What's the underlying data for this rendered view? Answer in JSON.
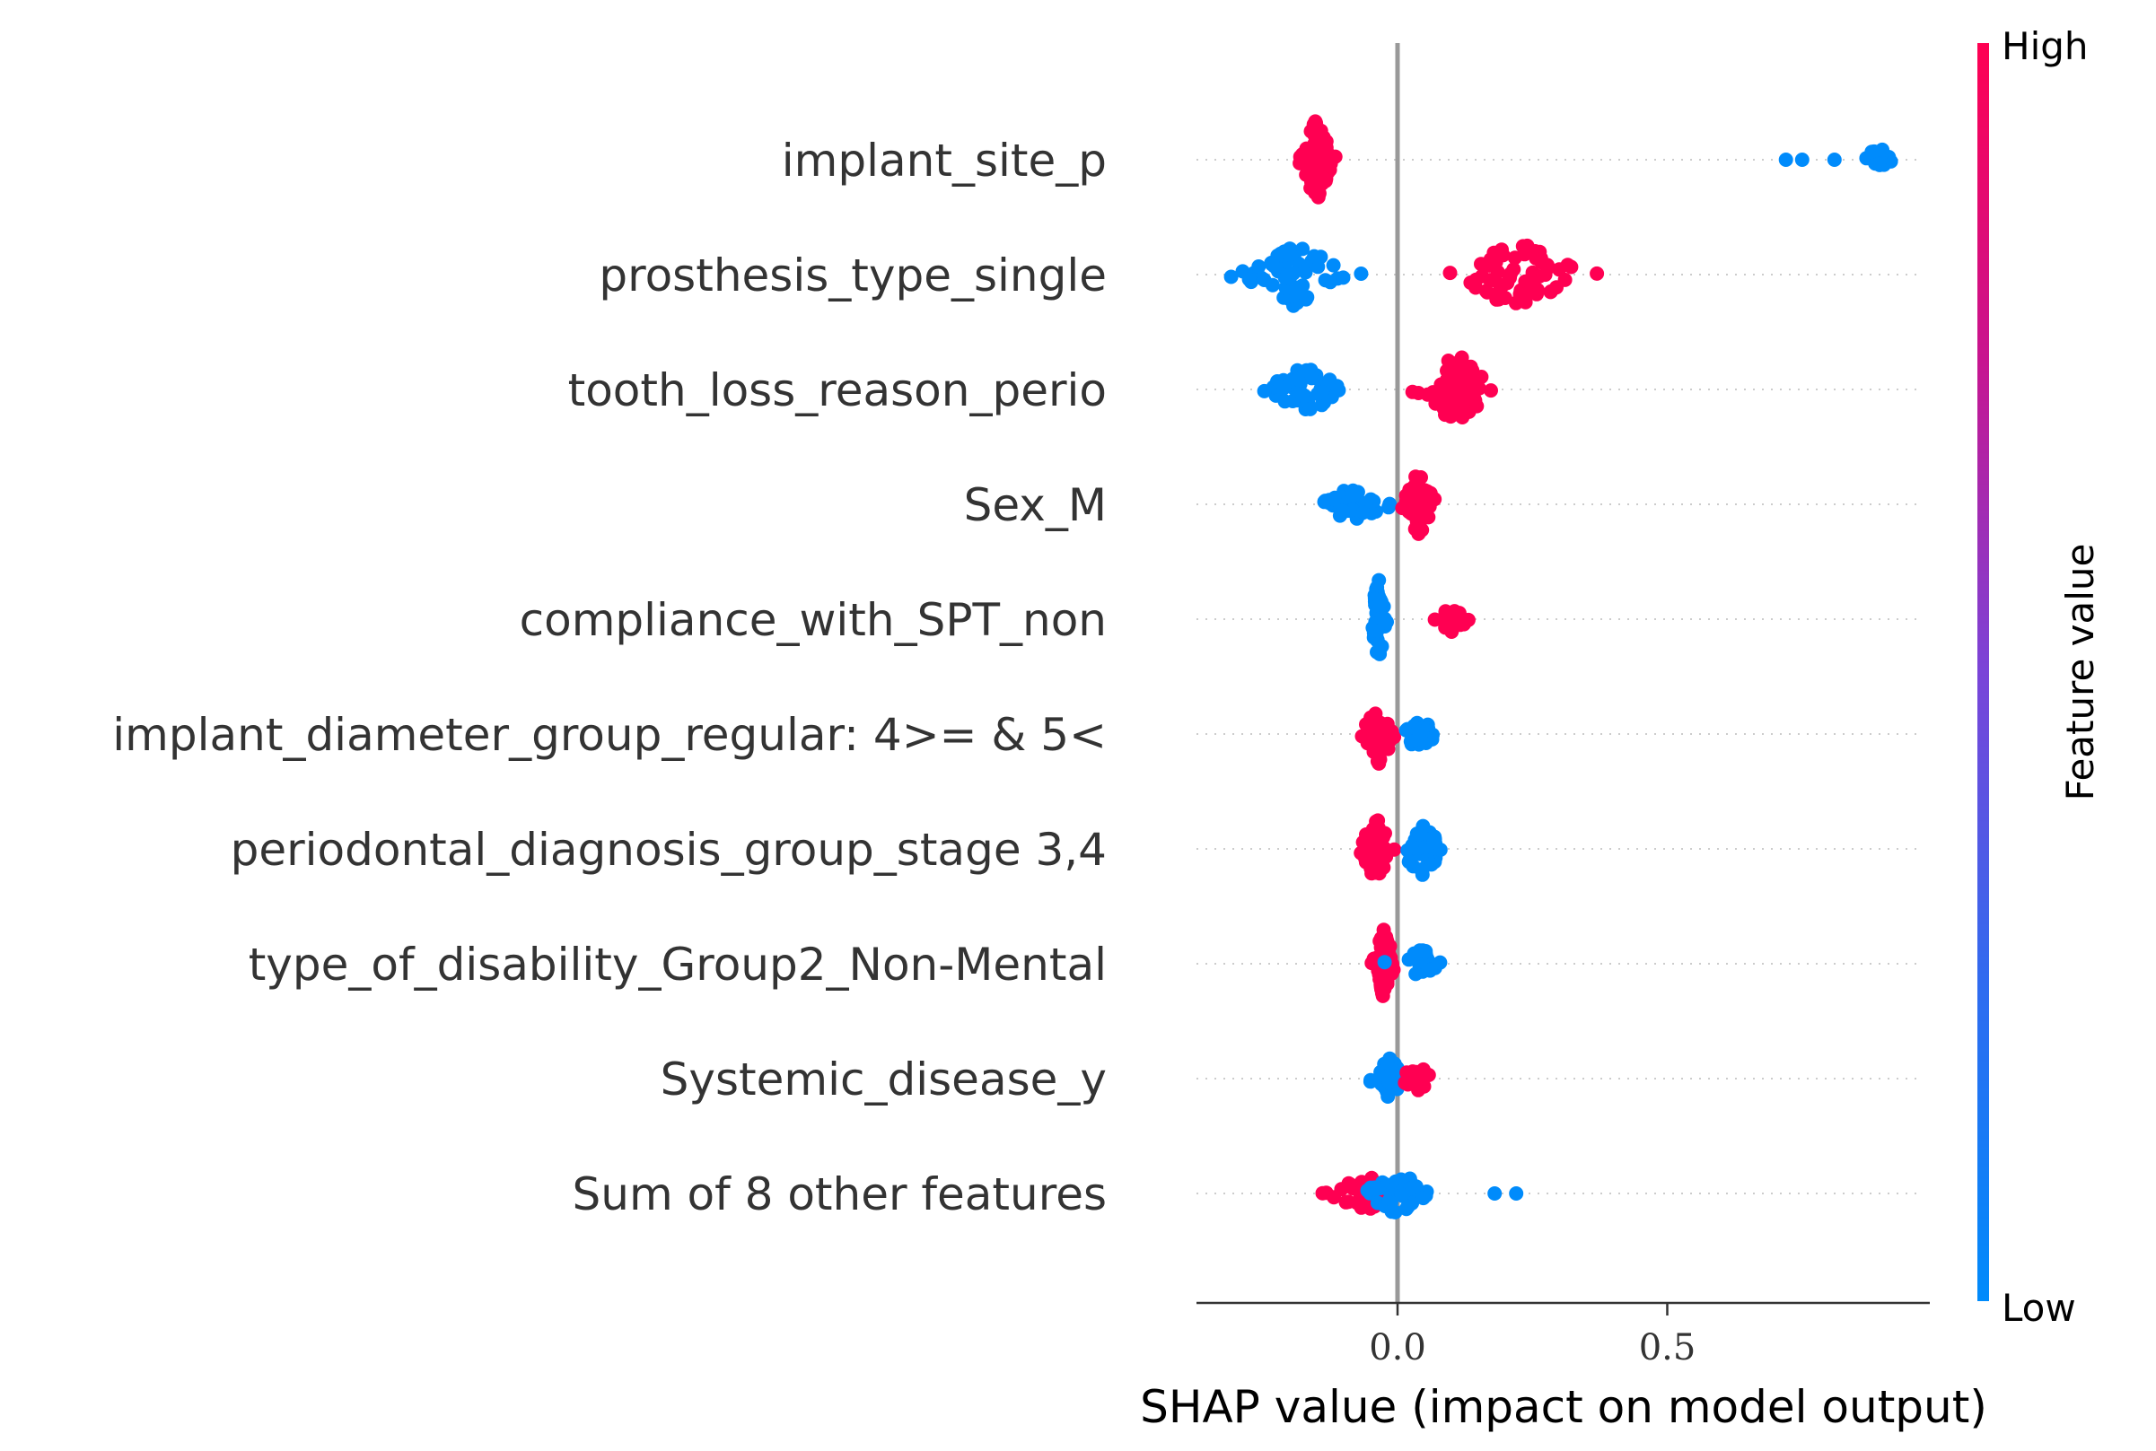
{
  "chart_data": {
    "type": "scatter",
    "subtype": "shap-beeswarm",
    "xlabel": "SHAP value (impact on model output)",
    "x_ticks": [
      0.0,
      0.5
    ],
    "x_tick_labels": [
      "0.0",
      "0.5"
    ],
    "xlim": [
      -0.37,
      0.98
    ],
    "grid": false,
    "colors": {
      "low": "#008bfb",
      "high": "#ff0052",
      "zero_line": "#999999",
      "row_guide": "#cccccc"
    },
    "colorbar": {
      "label": "Feature value",
      "high_label": "High",
      "low_label": "Low"
    },
    "features": [
      {
        "name": "implant_site_p",
        "groups": [
          {
            "value": "high",
            "center": -0.15,
            "spread": 0.03,
            "count": 90,
            "height": 1.0
          },
          {
            "value": "low",
            "center": 0.89,
            "spread": 0.03,
            "count": 16,
            "height": 0.35
          },
          {
            "value": "low",
            "points": [
              0.72,
              0.75,
              0.81
            ]
          }
        ]
      },
      {
        "name": "prosthesis_type_single",
        "groups": [
          {
            "value": "low",
            "center": -0.19,
            "spread": 0.1,
            "count": 60,
            "height": 0.75
          },
          {
            "value": "high",
            "center": 0.22,
            "spread": 0.12,
            "count": 70,
            "height": 0.8
          }
        ]
      },
      {
        "name": "tooth_loss_reason_perio",
        "groups": [
          {
            "value": "low",
            "center": -0.17,
            "spread": 0.07,
            "count": 45,
            "height": 0.6
          },
          {
            "value": "high",
            "center": 0.11,
            "spread": 0.07,
            "count": 60,
            "height": 0.85
          }
        ]
      },
      {
        "name": "Sex_M",
        "groups": [
          {
            "value": "low",
            "center": -0.08,
            "spread": 0.08,
            "count": 40,
            "height": 0.4
          },
          {
            "value": "high",
            "center": 0.04,
            "spread": 0.03,
            "count": 50,
            "height": 0.8
          }
        ]
      },
      {
        "name": "compliance_with_SPT_non",
        "groups": [
          {
            "value": "low",
            "center": -0.035,
            "spread": 0.015,
            "count": 50,
            "height": 1.0
          },
          {
            "value": "high",
            "center": 0.1,
            "spread": 0.04,
            "count": 25,
            "height": 0.3
          }
        ]
      },
      {
        "name": "implant_diameter_group_regular: 4>= & 5<",
        "groups": [
          {
            "value": "high",
            "center": -0.035,
            "spread": 0.03,
            "count": 45,
            "height": 0.75
          },
          {
            "value": "low",
            "center": 0.04,
            "spread": 0.03,
            "count": 30,
            "height": 0.45
          }
        ]
      },
      {
        "name": "periodontal_diagnosis_group_stage 3,4",
        "groups": [
          {
            "value": "high",
            "center": -0.04,
            "spread": 0.03,
            "count": 45,
            "height": 0.75
          },
          {
            "value": "low",
            "center": 0.045,
            "spread": 0.04,
            "count": 40,
            "height": 0.65
          }
        ]
      },
      {
        "name": "type_of_disability_Group2_Non-Mental",
        "groups": [
          {
            "value": "high",
            "center": -0.025,
            "spread": 0.02,
            "count": 60,
            "height": 0.85
          },
          {
            "value": "low",
            "center": 0.045,
            "spread": 0.05,
            "count": 25,
            "height": 0.35
          }
        ]
      },
      {
        "name": "Systemic_disease_y",
        "groups": [
          {
            "value": "low",
            "center": -0.015,
            "spread": 0.03,
            "count": 35,
            "height": 0.5
          },
          {
            "value": "high",
            "center": 0.035,
            "spread": 0.03,
            "count": 18,
            "height": 0.35
          }
        ]
      },
      {
        "name": "Sum of 8 other features",
        "groups": [
          {
            "value": "high",
            "center": -0.06,
            "spread": 0.07,
            "count": 40,
            "height": 0.45
          },
          {
            "value": "low",
            "center": 0.0,
            "spread": 0.06,
            "count": 40,
            "height": 0.55
          },
          {
            "value": "low",
            "points": [
              0.18,
              0.22
            ]
          }
        ]
      }
    ]
  }
}
